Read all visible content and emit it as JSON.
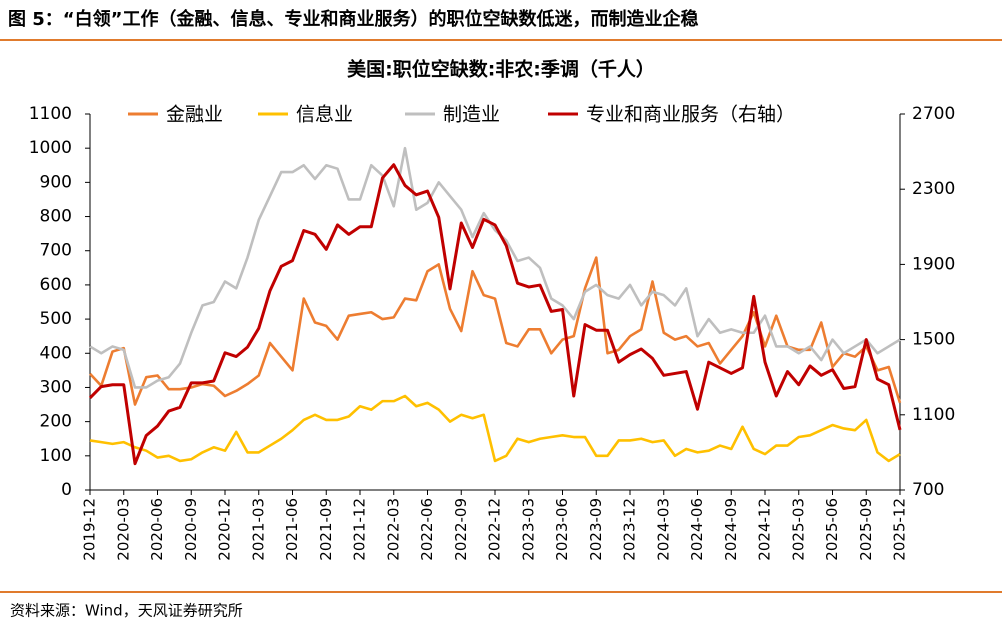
{
  "header": {
    "title": "图 5：“白领”工作（金融、信息、专业和商业服务）的职位空缺数低迷，而制造业企稳",
    "source": "资料来源：Wind，天风证券研究所"
  },
  "chart_data": {
    "type": "line",
    "title": "美国:职位空缺数:非农:季调（千人）",
    "categories": [
      "2019-12",
      null,
      null,
      "2020-03",
      null,
      null,
      "2020-06",
      null,
      null,
      "2020-09",
      null,
      null,
      "2020-12",
      null,
      null,
      "2021-03",
      null,
      null,
      "2021-06",
      null,
      null,
      "2021-09",
      null,
      null,
      "2021-12",
      null,
      null,
      "2022-03",
      null,
      null,
      "2022-06",
      null,
      null,
      "2022-09",
      null,
      null,
      "2022-12",
      null,
      null,
      "2023-03",
      null,
      null,
      "2023-06",
      null,
      null,
      "2023-09",
      null,
      null,
      "2023-12",
      null,
      null,
      "2024-03",
      null,
      null,
      "2024-06",
      null,
      null,
      "2024-09",
      null,
      null,
      "2024-12",
      null,
      null,
      "2025-03",
      null,
      null,
      "2025-06",
      null,
      null,
      "2025-09",
      null,
      null,
      "2025-12"
    ],
    "series": [
      {
        "name": "金融业",
        "color": "#ED7D31",
        "values": [
          340,
          305,
          405,
          415,
          250,
          330,
          335,
          295,
          295,
          300,
          310,
          305,
          275,
          290,
          310,
          335,
          430,
          390,
          350,
          560,
          490,
          480,
          440,
          510,
          515,
          520,
          500,
          505,
          560,
          555,
          640,
          660,
          530,
          465,
          640,
          570,
          560,
          430,
          420,
          470,
          470,
          400,
          440,
          450,
          590,
          680,
          400,
          410,
          450,
          470,
          610,
          460,
          440,
          450,
          420,
          430,
          370,
          410,
          450,
          520,
          420,
          510,
          420,
          410,
          410,
          490,
          360,
          400,
          390,
          420,
          350,
          360,
          255
        ]
      },
      {
        "name": "信息业",
        "color": "#FFC000",
        "values": [
          145,
          140,
          135,
          140,
          125,
          115,
          95,
          100,
          85,
          90,
          110,
          125,
          115,
          170,
          110,
          110,
          130,
          150,
          175,
          205,
          220,
          205,
          205,
          215,
          245,
          235,
          260,
          260,
          275,
          245,
          255,
          235,
          200,
          220,
          210,
          220,
          85,
          100,
          150,
          140,
          150,
          155,
          160,
          155,
          155,
          100,
          100,
          145,
          145,
          150,
          140,
          145,
          100,
          120,
          110,
          115,
          130,
          120,
          185,
          120,
          105,
          130,
          130,
          155,
          160,
          175,
          190,
          180,
          175,
          205,
          110,
          85,
          105
        ]
      },
      {
        "name": "制造业",
        "color": "#BFBFBF",
        "values": [
          420,
          400,
          420,
          410,
          300,
          300,
          320,
          330,
          370,
          460,
          540,
          550,
          610,
          590,
          680,
          790,
          860,
          930,
          930,
          950,
          910,
          950,
          940,
          850,
          850,
          950,
          920,
          830,
          1000,
          820,
          840,
          900,
          860,
          820,
          740,
          810,
          760,
          730,
          670,
          680,
          650,
          560,
          540,
          500,
          580,
          600,
          570,
          560,
          600,
          540,
          580,
          570,
          540,
          590,
          450,
          500,
          460,
          470,
          460,
          460,
          510,
          420,
          420,
          400,
          420,
          380,
          440,
          400,
          420,
          440,
          400,
          420,
          440
        ]
      },
      {
        "name": "专业和商业服务（右轴）",
        "color": "#C00000",
        "axis": "y2",
        "values": [
          1190,
          1250,
          1260,
          1260,
          840,
          990,
          1040,
          1120,
          1140,
          1270,
          1270,
          1280,
          1430,
          1410,
          1460,
          1560,
          1760,
          1890,
          1920,
          2080,
          2060,
          1980,
          2110,
          2060,
          2100,
          2100,
          2360,
          2430,
          2320,
          2270,
          2290,
          2150,
          1770,
          2120,
          1990,
          2140,
          2110,
          2000,
          1800,
          1780,
          1790,
          1650,
          1660,
          1200,
          1580,
          1550,
          1550,
          1380,
          1420,
          1450,
          1400,
          1310,
          1320,
          1330,
          1130,
          1380,
          1350,
          1320,
          1350,
          1730,
          1380,
          1200,
          1330,
          1260,
          1360,
          1310,
          1340,
          1240,
          1250,
          1500,
          1290,
          1260,
          1020
        ]
      }
    ],
    "ylim": [
      0,
      1100
    ],
    "yticks": [
      0,
      100,
      200,
      300,
      400,
      500,
      600,
      700,
      800,
      900,
      1000,
      1100
    ],
    "y2lim": [
      700,
      2700
    ],
    "y2ticks": [
      700,
      1100,
      1500,
      1900,
      2300,
      2700
    ],
    "grid": false
  }
}
